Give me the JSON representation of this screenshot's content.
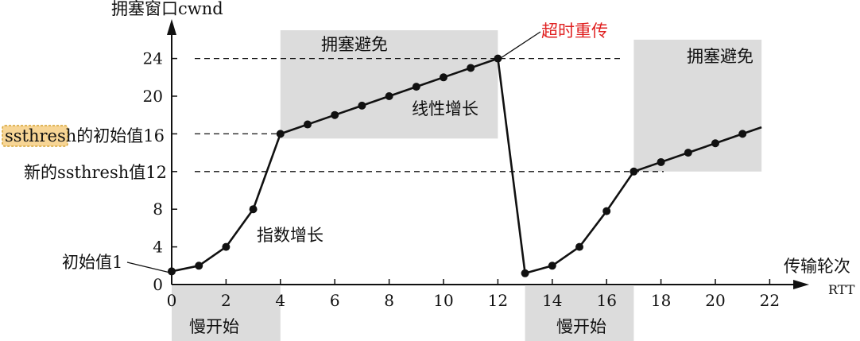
{
  "chart_data": {
    "type": "line",
    "y_axis_label": "拥塞窗口cwnd",
    "x_axis_label": "传输轮次",
    "x_axis_unit": "RTT",
    "x_ticks": [
      "0",
      "2",
      "4",
      "6",
      "8",
      "10",
      "12",
      "14",
      "16",
      "18",
      "20",
      "22"
    ],
    "y_ticks": [
      "0",
      "4",
      "8",
      "12",
      "16",
      "20",
      "24"
    ],
    "xlim": [
      0,
      22.5
    ],
    "ylim": [
      0,
      27
    ],
    "grid": false,
    "series": [
      {
        "points": [
          {
            "x": 0,
            "y": 1.4
          },
          {
            "x": 1,
            "y": 2.0
          },
          {
            "x": 2,
            "y": 4
          },
          {
            "x": 3,
            "y": 8
          },
          {
            "x": 4,
            "y": 16
          },
          {
            "x": 5,
            "y": 17
          },
          {
            "x": 6,
            "y": 18
          },
          {
            "x": 7,
            "y": 19
          },
          {
            "x": 8,
            "y": 20
          },
          {
            "x": 9,
            "y": 21
          },
          {
            "x": 10,
            "y": 22
          },
          {
            "x": 11,
            "y": 23
          },
          {
            "x": 12,
            "y": 24
          }
        ]
      },
      {
        "points": [
          {
            "x": 13,
            "y": 1.2
          },
          {
            "x": 14,
            "y": 2.0
          },
          {
            "x": 15,
            "y": 4
          },
          {
            "x": 16,
            "y": 7.8
          },
          {
            "x": 17,
            "y": 12
          },
          {
            "x": 18,
            "y": 13
          },
          {
            "x": 19,
            "y": 14
          },
          {
            "x": 20,
            "y": 15
          },
          {
            "x": 21,
            "y": 16
          }
        ],
        "line_extends_to_x": 21.7
      }
    ],
    "thresholds": [
      {
        "y": 24,
        "label": "24"
      },
      {
        "y": 16,
        "label_highlight": "ssthresh",
        "label_rest": "的初始值16"
      },
      {
        "y": 12,
        "label": "新的ssthresh值12"
      }
    ],
    "regions": [
      {
        "label": "拥塞避免",
        "x_range": [
          4,
          12
        ],
        "y_range": [
          15.5,
          27
        ]
      },
      {
        "label": "拥塞避免",
        "x_range": [
          17,
          21.7
        ],
        "y_range": [
          12,
          26
        ]
      },
      {
        "label": "慢开始",
        "x_range": [
          0,
          4
        ],
        "band": "below-axis"
      },
      {
        "label": "慢开始",
        "x_range": [
          13,
          17
        ],
        "band": "below-axis"
      }
    ],
    "annotations": [
      {
        "text": "超时重传",
        "color": "#e02020",
        "target": {
          "x": 12,
          "y": 24
        }
      },
      {
        "text": "线性增长",
        "at": {
          "x": 8.8,
          "y": 18.5
        }
      },
      {
        "text": "指数增长",
        "at": {
          "x": 3.2,
          "y": 5.5
        }
      },
      {
        "text": "初始值1",
        "target": {
          "x": 0,
          "y": 1.4
        }
      }
    ],
    "colors": {
      "line": "#111111",
      "region_fill": "#dcdcdc",
      "highlight_fill": "#f7d595",
      "highlight_border": "#d6a435",
      "timeout_text": "#e02020"
    }
  }
}
